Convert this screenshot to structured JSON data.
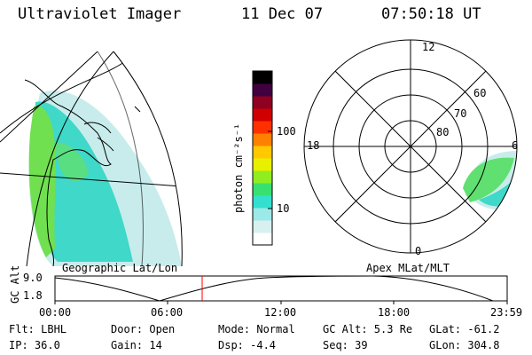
{
  "header": {
    "instrument": "Ultraviolet Imager",
    "date": "11 Dec 07",
    "time": "07:50:18 UT"
  },
  "map_left": {
    "label": "Geographic Lat/Lon"
  },
  "map_right": {
    "label": "Apex MLat/MLT",
    "mlt_labels": {
      "top": "12",
      "left": "18",
      "right": "6",
      "bottom": "0"
    },
    "lat_labels": [
      "60",
      "70",
      "80"
    ]
  },
  "colorbar": {
    "unit_label": "photon cm⁻²s⁻¹",
    "ticks": [
      "100",
      "10"
    ],
    "colors": [
      "#ffffff",
      "#d8f0f0",
      "#9de8e8",
      "#33e0d0",
      "#38e070",
      "#90ee20",
      "#e8f000",
      "#ffc800",
      "#ff8000",
      "#ff3000",
      "#d00000",
      "#900020",
      "#400040",
      "#000000"
    ]
  },
  "timeline": {
    "ylabel": "GC Alt",
    "ytick_top": "9.0",
    "ytick_bottom": "1.8",
    "xticks": [
      "00:00",
      "06:00",
      "12:00",
      "18:00",
      "23:59"
    ],
    "current_marker_color": "#ff0000"
  },
  "status": {
    "flt": "Flt: LBHL",
    "ip": "IP: 36.0",
    "door": "Door: Open",
    "gain": "Gain: 14",
    "mode": "Mode: Normal",
    "dsp": "Dsp:   -4.4",
    "gc_alt": "GC Alt: 5.3 Re",
    "seq": "Seq: 39",
    "glat": "GLat: -61.2",
    "glon": "GLon: 304.8"
  }
}
